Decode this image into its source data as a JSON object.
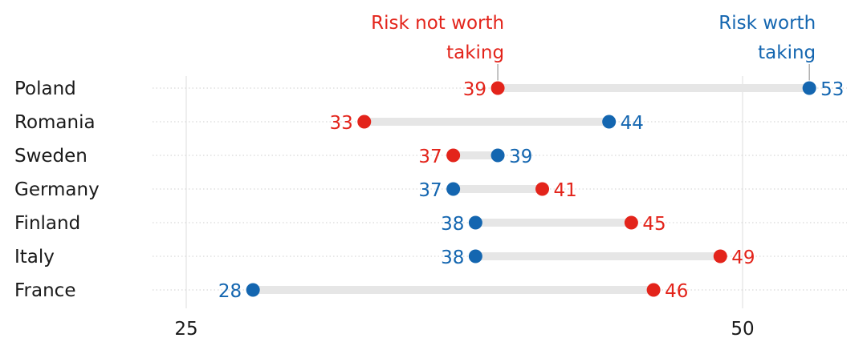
{
  "chart_data": {
    "type": "dumbbell",
    "series": [
      {
        "name": "Risk not worth taking",
        "key": "not_worth",
        "color": "#e3241b"
      },
      {
        "name": "Risk worth taking",
        "key": "worth",
        "color": "#1466b0"
      }
    ],
    "legend": {
      "not_worth_lines": [
        "Risk not worth",
        "taking"
      ],
      "worth_lines": [
        "Risk worth",
        "taking"
      ],
      "placement": "top, above Poland row"
    },
    "x_axis": {
      "range": [
        22,
        55
      ],
      "ticks": [
        25,
        50
      ],
      "tick_labels": [
        "25",
        "50"
      ],
      "gridlines": [
        25,
        50
      ]
    },
    "categories": [
      "Poland",
      "Romania",
      "Sweden",
      "Germany",
      "Finland",
      "Italy",
      "France"
    ],
    "rows": [
      {
        "country": "Poland",
        "not_worth": 39,
        "worth": 53
      },
      {
        "country": "Romania",
        "not_worth": 33,
        "worth": 44
      },
      {
        "country": "Sweden",
        "not_worth": 37,
        "worth": 39
      },
      {
        "country": "Germany",
        "not_worth": 41,
        "worth": 37
      },
      {
        "country": "Finland",
        "not_worth": 45,
        "worth": 38
      },
      {
        "country": "Italy",
        "not_worth": 49,
        "worth": 38
      },
      {
        "country": "France",
        "not_worth": 46,
        "worth": 28
      }
    ],
    "style": {
      "connector_color": "#e6e6e6",
      "row_guide_color": "#cfcfcf",
      "gridline_color": "#e3e3e3"
    }
  }
}
